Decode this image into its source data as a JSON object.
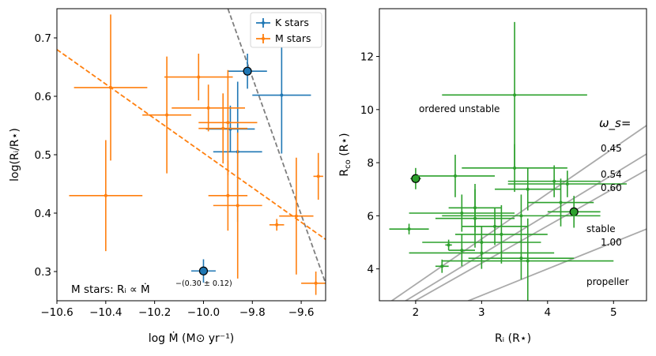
{
  "chart_data": [
    {
      "type": "scatter",
      "name": "left-panel",
      "xlabel": "log Ṁ (M⊙ yr⁻¹)",
      "ylabel": "log(Rᵢ/R⋆)",
      "xlim": [
        -10.6,
        -9.5
      ],
      "ylim": [
        0.25,
        0.75
      ],
      "xticks": [
        -10.6,
        -10.4,
        -10.2,
        -10.0,
        -9.8,
        -9.6
      ],
      "xtick_labels": [
        "−10.6",
        "−10.4",
        "−10.2",
        "−10.0",
        "−9.8",
        "−9.6"
      ],
      "yticks": [
        0.3,
        0.4,
        0.5,
        0.6,
        0.7
      ],
      "ytick_labels": [
        "0.3",
        "0.4",
        "0.5",
        "0.6",
        "0.7"
      ],
      "legend": {
        "placement": "top-right",
        "entries": [
          "K stars",
          "M stars"
        ]
      },
      "annotation": "M stars: Rᵢ ∝ Ṁ",
      "annotation_exponent": "−(0.30 ± 0.12)",
      "fit_lines": [
        {
          "name": "gray-dashed",
          "color": "#7f7f7f",
          "x": [
            -9.9,
            -9.5
          ],
          "y": [
            0.75,
            0.28
          ]
        },
        {
          "name": "orange-dashed",
          "color": "#ff7f0e",
          "x": [
            -10.6,
            -9.5
          ],
          "y": [
            0.68,
            0.355
          ]
        }
      ],
      "series": [
        {
          "name": "K stars",
          "color": "#1f77b4",
          "points": [
            {
              "x": -9.82,
              "y": 0.643,
              "xerr": 0.08,
              "yerr": 0.03,
              "circled": true
            },
            {
              "x": -9.68,
              "y": 0.602,
              "xerr": 0.12,
              "yerr": 0.1
            },
            {
              "x": -9.89,
              "y": 0.544,
              "xerr": 0.1,
              "yerr": 0.04
            },
            {
              "x": -9.86,
              "y": 0.505,
              "xerr": 0.1,
              "yerr": 0.12
            },
            {
              "x": -10.0,
              "y": 0.301,
              "xerr": 0.05,
              "yerr": 0.02,
              "circled": true
            }
          ]
        },
        {
          "name": "M stars",
          "color": "#ff7f0e",
          "points": [
            {
              "x": -10.38,
              "y": 0.615,
              "xerr": 0.15,
              "yerr": 0.125
            },
            {
              "x": -10.15,
              "y": 0.568,
              "xerr": 0.1,
              "yerr": 0.1
            },
            {
              "x": -10.02,
              "y": 0.633,
              "xerr": 0.14,
              "yerr": 0.04
            },
            {
              "x": -9.98,
              "y": 0.58,
              "xerr": 0.15,
              "yerr": 0.04
            },
            {
              "x": -9.9,
              "y": 0.555,
              "xerr": 0.12,
              "yerr": 0.09
            },
            {
              "x": -9.92,
              "y": 0.545,
              "xerr": 0.1,
              "yerr": 0.06
            },
            {
              "x": -10.4,
              "y": 0.43,
              "xerr": 0.15,
              "yerr": 0.095
            },
            {
              "x": -9.9,
              "y": 0.43,
              "xerr": 0.08,
              "yerr": 0.06
            },
            {
              "x": -9.86,
              "y": 0.413,
              "xerr": 0.1,
              "yerr": 0.125
            },
            {
              "x": -9.62,
              "y": 0.395,
              "xerr": 0.07,
              "yerr": 0.1
            },
            {
              "x": -9.7,
              "y": 0.38,
              "xerr": 0.03,
              "yerr": 0.01
            },
            {
              "x": -9.53,
              "y": 0.463,
              "xerr": 0.02,
              "yerr": 0.04
            },
            {
              "x": -9.54,
              "y": 0.28,
              "xerr": 0.06,
              "yerr": 0.02
            }
          ]
        }
      ]
    },
    {
      "type": "scatter",
      "name": "right-panel",
      "xlabel": "Rᵢ (R⋆)",
      "ylabel": "R_co (R⋆)",
      "xlim": [
        1.45,
        5.5
      ],
      "ylim": [
        2.8,
        13.8
      ],
      "xticks": [
        2,
        3,
        4,
        5
      ],
      "xtick_labels": [
        "2",
        "3",
        "4",
        "5"
      ],
      "yticks": [
        4,
        6,
        8,
        10,
        12
      ],
      "ytick_labels": [
        "4",
        "6",
        "8",
        "10",
        "12"
      ],
      "labels": {
        "ordered_unstable": "ordered unstable",
        "stable": "stable",
        "propeller": "propeller",
        "omega_title": "ω_s=",
        "omega_values": [
          "0.45",
          "0.54",
          "0.60",
          "1.00"
        ]
      },
      "omega_lines": [
        {
          "omega": 0.45,
          "slope": 1.709
        },
        {
          "omega": 0.54,
          "slope": 1.514
        },
        {
          "omega": 0.6,
          "slope": 1.405
        },
        {
          "omega": 1.0,
          "slope": 1.0
        }
      ],
      "line_color": "#aaaaaa",
      "series": [
        {
          "name": "stars",
          "color": "#2ca02c",
          "points": [
            {
              "x": 2.0,
              "y": 7.4,
              "xerr": 0.08,
              "yerr": 0.4,
              "circled": true
            },
            {
              "x": 4.4,
              "y": 6.15,
              "xerr": 0.4,
              "yerr": 0.6,
              "circled": true
            },
            {
              "x": 3.5,
              "y": 10.55,
              "xerr": 1.1,
              "yerr": 2.75
            },
            {
              "x": 2.6,
              "y": 7.5,
              "xerr": 0.6,
              "yerr": 0.8
            },
            {
              "x": 3.5,
              "y": 7.8,
              "xerr": 0.8,
              "yerr": 0.9
            },
            {
              "x": 4.1,
              "y": 7.3,
              "xerr": 0.7,
              "yerr": 0.6
            },
            {
              "x": 4.3,
              "y": 7.2,
              "xerr": 0.9,
              "yerr": 0.5
            },
            {
              "x": 3.7,
              "y": 7.0,
              "xerr": 0.5,
              "yerr": 0.8
            },
            {
              "x": 2.9,
              "y": 6.3,
              "xerr": 0.4,
              "yerr": 0.9
            },
            {
              "x": 2.7,
              "y": 6.1,
              "xerr": 0.8,
              "yerr": 0.7
            },
            {
              "x": 4.2,
              "y": 6.5,
              "xerr": 0.5,
              "yerr": 0.9
            },
            {
              "x": 3.6,
              "y": 6.0,
              "xerr": 1.2,
              "yerr": 0.8
            },
            {
              "x": 2.9,
              "y": 5.9,
              "xerr": 0.6,
              "yerr": 1.1
            },
            {
              "x": 3.2,
              "y": 5.6,
              "xerr": 0.5,
              "yerr": 0.7
            },
            {
              "x": 3.3,
              "y": 5.3,
              "xerr": 0.7,
              "yerr": 1.1
            },
            {
              "x": 3.0,
              "y": 5.0,
              "xerr": 0.9,
              "yerr": 0.6
            },
            {
              "x": 2.5,
              "y": 4.9,
              "xerr": 0.05,
              "yerr": 0.2
            },
            {
              "x": 2.7,
              "y": 4.7,
              "xerr": 0.2,
              "yerr": 0.6
            },
            {
              "x": 3.6,
              "y": 4.4,
              "xerr": 0.8,
              "yerr": 0.8
            },
            {
              "x": 3.0,
              "y": 4.6,
              "xerr": 1.1,
              "yerr": 0.6
            },
            {
              "x": 3.7,
              "y": 4.3,
              "xerr": 1.3,
              "yerr": 1.6
            },
            {
              "x": 2.4,
              "y": 4.1,
              "xerr": 0.1,
              "yerr": 0.25
            },
            {
              "x": 1.9,
              "y": 5.5,
              "xerr": 0.3,
              "yerr": 0.2
            }
          ]
        }
      ]
    }
  ]
}
